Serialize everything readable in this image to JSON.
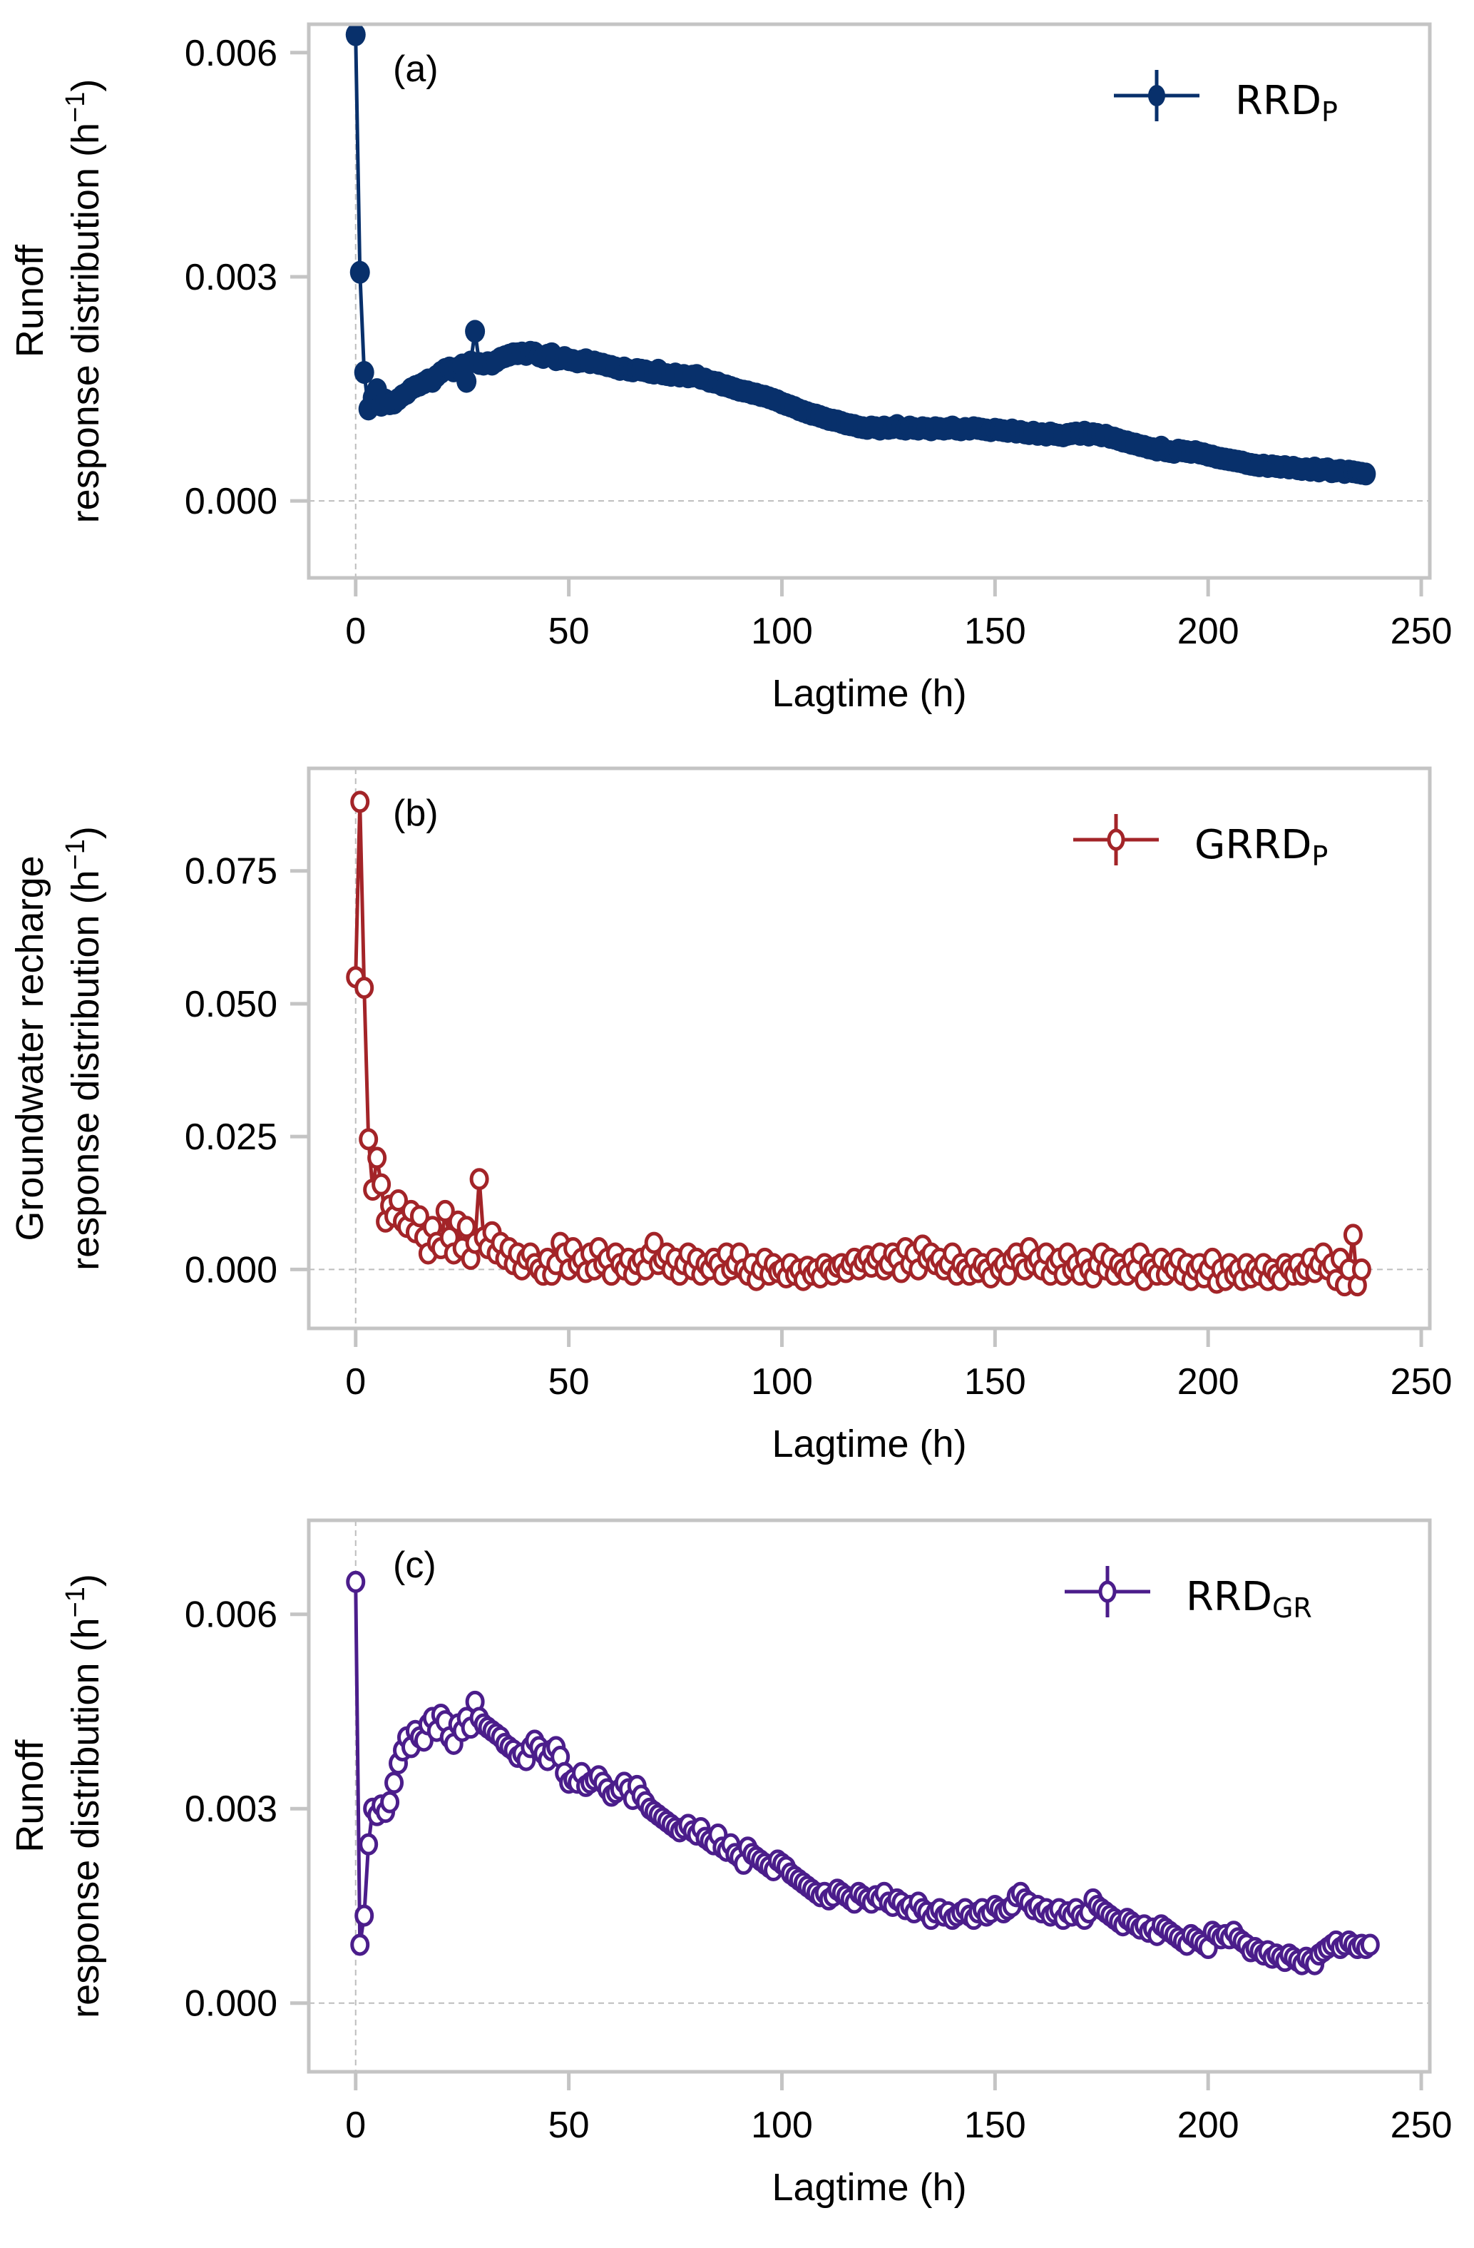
{
  "figure": {
    "panels_count": 3
  },
  "chart_data": [
    {
      "type": "line",
      "panel_tag": "(a)",
      "title": "",
      "xlabel": "Lagtime (h)",
      "ylabel_line1": "Runoff",
      "ylabel_line2": "response distribution (h",
      "ylabel_sup": "−1",
      "ylabel_close": ")",
      "xlim": [
        -11,
        252
      ],
      "ylim": [
        -0.00103,
        0.00638
      ],
      "xticks": [
        0,
        50,
        100,
        150,
        200,
        250
      ],
      "xtick_labels": [
        "0",
        "50",
        "100",
        "150",
        "200",
        "250"
      ],
      "yticks": [
        0.0,
        0.003,
        0.006
      ],
      "ytick_labels": [
        "0.000",
        "0.003",
        "0.006"
      ],
      "grid": false,
      "reference_lines": {
        "x0": true,
        "y0": true
      },
      "legend": {
        "label_main": "RRD",
        "label_sub": "P",
        "placement": "top-right"
      },
      "series": [
        {
          "name": "RRD_P",
          "color": "#08306b",
          "marker": "filled-circle",
          "x_start": 0,
          "x_step": 1,
          "values": [
            0.00624,
            0.00306,
            0.00172,
            0.00123,
            0.00138,
            0.00149,
            0.00128,
            0.00135,
            0.0013,
            0.00131,
            0.00136,
            0.00141,
            0.00144,
            0.0015,
            0.00153,
            0.00155,
            0.00158,
            0.00162,
            0.0016,
            0.00167,
            0.00172,
            0.00176,
            0.00178,
            0.00174,
            0.00178,
            0.00182,
            0.0016,
            0.00186,
            0.00227,
            0.00184,
            0.00183,
            0.00185,
            0.00183,
            0.00187,
            0.00191,
            0.00193,
            0.00195,
            0.00197,
            0.00197,
            0.00198,
            0.00196,
            0.00199,
            0.00198,
            0.00194,
            0.00192,
            0.00195,
            0.00197,
            0.00189,
            0.0019,
            0.00192,
            0.00189,
            0.00188,
            0.00186,
            0.00187,
            0.00189,
            0.00185,
            0.00186,
            0.00184,
            0.00183,
            0.00181,
            0.0018,
            0.00178,
            0.00176,
            0.00178,
            0.00175,
            0.00174,
            0.00176,
            0.00175,
            0.00174,
            0.00172,
            0.00171,
            0.00175,
            0.0017,
            0.00169,
            0.00168,
            0.0017,
            0.00167,
            0.00168,
            0.00166,
            0.00167,
            0.00168,
            0.00164,
            0.00163,
            0.0016,
            0.00159,
            0.00158,
            0.00155,
            0.00154,
            0.00152,
            0.0015,
            0.00148,
            0.00147,
            0.00146,
            0.00144,
            0.00143,
            0.00141,
            0.0014,
            0.00138,
            0.00136,
            0.00134,
            0.00131,
            0.00129,
            0.00127,
            0.00125,
            0.00122,
            0.0012,
            0.00118,
            0.00116,
            0.00115,
            0.00113,
            0.00111,
            0.00109,
            0.00108,
            0.00107,
            0.00105,
            0.00103,
            0.00102,
            0.00101,
            0.00099,
            0.00098,
            0.00097,
            0.00099,
            0.00098,
            0.00096,
            0.00099,
            0.00097,
            0.00098,
            0.00101,
            0.00097,
            0.00096,
            0.00099,
            0.00097,
            0.00096,
            0.00098,
            0.00097,
            0.00095,
            0.00098,
            0.00097,
            0.00096,
            0.00097,
            0.00099,
            0.00096,
            0.00095,
            0.00097,
            0.00096,
            0.00098,
            0.00097,
            0.00096,
            0.00095,
            0.00094,
            0.00096,
            0.00095,
            0.00094,
            0.00093,
            0.00095,
            0.00092,
            0.00093,
            0.00091,
            0.0009,
            0.00092,
            0.00089,
            0.0009,
            0.00088,
            0.00091,
            0.00089,
            0.00088,
            0.00087,
            0.00089,
            0.0009,
            0.00091,
            0.00089,
            0.00092,
            0.00088,
            0.0009,
            0.00089,
            0.00087,
            0.00088,
            0.00085,
            0.00084,
            0.00082,
            0.0008,
            0.00079,
            0.00077,
            0.00076,
            0.00074,
            0.00073,
            0.00071,
            0.0007,
            0.00068,
            0.00072,
            0.00067,
            0.00066,
            0.00065,
            0.00068,
            0.00067,
            0.00066,
            0.00065,
            0.00066,
            0.00064,
            0.00063,
            0.00061,
            0.0006,
            0.00058,
            0.00057,
            0.00056,
            0.00055,
            0.00054,
            0.00053,
            0.00052,
            0.0005,
            0.00049,
            0.00048,
            0.00047,
            0.00048,
            0.00046,
            0.00047,
            0.00046,
            0.00045,
            0.00046,
            0.00044,
            0.00045,
            0.00043,
            0.00042,
            0.00043,
            0.00041,
            0.00044,
            0.0004,
            0.00042,
            0.00043,
            0.00039,
            0.0004,
            0.00041,
            0.00038,
            0.0004,
            0.00039,
            0.00038,
            0.00037,
            0.00036
          ]
        }
      ]
    },
    {
      "type": "line",
      "panel_tag": "(b)",
      "title": "",
      "xlabel": "Lagtime (h)",
      "ylabel_line1": "Groundwater recharge",
      "ylabel_line2": "response distribution (h",
      "ylabel_sup": "−1",
      "ylabel_close": ")",
      "xlim": [
        -11,
        252
      ],
      "ylim": [
        -0.0111,
        0.0943
      ],
      "xticks": [
        0,
        50,
        100,
        150,
        200,
        250
      ],
      "xtick_labels": [
        "0",
        "50",
        "100",
        "150",
        "200",
        "250"
      ],
      "yticks": [
        0.0,
        0.025,
        0.05,
        0.075
      ],
      "ytick_labels": [
        "0.000",
        "0.025",
        "0.050",
        "0.075"
      ],
      "grid": false,
      "reference_lines": {
        "x0": true,
        "y0": true
      },
      "legend": {
        "label_main": "GRRD",
        "label_sub": "P",
        "placement": "top-right"
      },
      "series": [
        {
          "name": "GRRD_P",
          "color": "#a32428",
          "marker": "open-circle",
          "x_start": 0,
          "x_step": 1,
          "values": [
            0.055,
            0.088,
            0.053,
            0.0245,
            0.015,
            0.021,
            0.016,
            0.009,
            0.012,
            0.01,
            0.013,
            0.009,
            0.008,
            0.011,
            0.007,
            0.01,
            0.006,
            0.003,
            0.008,
            0.005,
            0.004,
            0.011,
            0.006,
            0.003,
            0.009,
            0.004,
            0.008,
            0.002,
            0.005,
            0.017,
            0.006,
            0.004,
            0.007,
            0.003,
            0.005,
            0.002,
            0.004,
            0.001,
            0.003,
            0.0,
            0.002,
            0.003,
            0.001,
            0.0,
            -0.001,
            0.002,
            -0.001,
            0.001,
            0.005,
            0.003,
            0.0,
            0.004,
            0.001,
            0.002,
            -0.0005,
            0.003,
            0.0,
            0.004,
            0.001,
            0.002,
            -0.001,
            0.003,
            0.001,
            0.0,
            0.002,
            -0.001,
            0.001,
            0.002,
            0.0,
            0.003,
            0.005,
            0.001,
            0.002,
            0.003,
            0.0,
            0.002,
            -0.001,
            0.001,
            0.003,
            0.0,
            0.002,
            -0.001,
            0.001,
            0.0,
            0.002,
            0.001,
            -0.001,
            0.003,
            0.0,
            0.001,
            0.003,
            0.0,
            -0.001,
            0.001,
            -0.002,
            0.0,
            0.002,
            -0.001,
            0.001,
            -0.0005,
            0.0,
            -0.0015,
            0.001,
            -0.001,
            0.0,
            -0.002,
            0.0005,
            -0.001,
            0.0,
            -0.0015,
            0.001,
            0.0,
            -0.001,
            0.0005,
            0.001,
            -0.0005,
            0.001,
            0.002,
            0.0,
            0.0015,
            0.0025,
            0.0005,
            0.002,
            0.003,
            0.0,
            0.001,
            0.003,
            0.002,
            -0.0005,
            0.004,
            0.001,
            0.003,
            0.0,
            0.0045,
            0.002,
            0.003,
            0.001,
            0.002,
            0.0,
            0.001,
            0.003,
            -0.001,
            0.001,
            0.0,
            -0.001,
            0.002,
            -0.0005,
            0.001,
            0.0,
            -0.0015,
            0.002,
            0.0,
            0.001,
            -0.001,
            0.002,
            0.003,
            0.001,
            0.0,
            0.004,
            0.001,
            0.002,
            0.0,
            0.003,
            -0.001,
            0.001,
            0.002,
            -0.001,
            0.003,
            0.0,
            0.001,
            -0.001,
            0.002,
            0.0,
            -0.0015,
            0.001,
            0.003,
            0.0,
            0.002,
            -0.001,
            0.001,
            0.0,
            -0.001,
            0.002,
            0.0,
            0.003,
            -0.002,
            0.001,
            0.0,
            -0.001,
            0.002,
            -0.001,
            0.001,
            0.0,
            0.002,
            -0.001,
            0.001,
            -0.002,
            0.0,
            0.001,
            -0.0015,
            0.0,
            0.002,
            -0.0025,
            0.0,
            -0.002,
            0.001,
            -0.001,
            0.0,
            -0.002,
            0.001,
            -0.0015,
            0.0,
            -0.001,
            0.001,
            -0.002,
            0.0,
            -0.001,
            -0.002,
            0.001,
            0.0,
            -0.001,
            0.001,
            -0.001,
            0.0,
            0.002,
            -0.0005,
            0.001,
            0.003,
            0.0,
            0.001,
            -0.002,
            0.002,
            -0.003,
            0.0,
            0.0065,
            -0.003,
            0.0
          ]
        }
      ]
    },
    {
      "type": "line",
      "panel_tag": "(c)",
      "title": "",
      "xlabel": "Lagtime (h)",
      "ylabel_line1": "Runoff",
      "ylabel_line2": "response distribution (h",
      "ylabel_sup": "−1",
      "ylabel_close": ")",
      "xlim": [
        -11,
        252
      ],
      "ylim": [
        -0.00106,
        0.00745
      ],
      "xticks": [
        0,
        50,
        100,
        150,
        200,
        250
      ],
      "xtick_labels": [
        "0",
        "50",
        "100",
        "150",
        "200",
        "250"
      ],
      "yticks": [
        0.0,
        0.003,
        0.006
      ],
      "ytick_labels": [
        "0.000",
        "0.003",
        "0.006"
      ],
      "grid": false,
      "reference_lines": {
        "x0": true,
        "y0": true
      },
      "legend": {
        "label_main": "RRD",
        "label_sub": "GR",
        "placement": "top-right"
      },
      "series": [
        {
          "name": "RRD_GR",
          "color": "#4b1d8b",
          "marker": "open-circle",
          "x_start": 0,
          "x_step": 1,
          "values": [
            0.0065,
            0.0009,
            0.00135,
            0.00245,
            0.003,
            0.0029,
            0.00305,
            0.00295,
            0.0031,
            0.0034,
            0.0037,
            0.0039,
            0.0041,
            0.00395,
            0.0042,
            0.0041,
            0.00405,
            0.0043,
            0.0044,
            0.0042,
            0.00445,
            0.00435,
            0.0041,
            0.004,
            0.0043,
            0.0042,
            0.0044,
            0.00425,
            0.00465,
            0.0044,
            0.0043,
            0.00425,
            0.0042,
            0.00415,
            0.0041,
            0.004,
            0.00395,
            0.0039,
            0.0038,
            0.00385,
            0.00375,
            0.00395,
            0.00405,
            0.00395,
            0.00385,
            0.00375,
            0.0039,
            0.00395,
            0.0038,
            0.00355,
            0.0034,
            0.00345,
            0.0034,
            0.00355,
            0.00335,
            0.0034,
            0.00345,
            0.0035,
            0.0034,
            0.0033,
            0.0032,
            0.00325,
            0.0033,
            0.0034,
            0.0033,
            0.00315,
            0.00335,
            0.0032,
            0.0031,
            0.003,
            0.00295,
            0.0029,
            0.00285,
            0.0028,
            0.00275,
            0.0027,
            0.00265,
            0.0027,
            0.00275,
            0.00265,
            0.0026,
            0.0027,
            0.00255,
            0.0025,
            0.00245,
            0.0026,
            0.0024,
            0.00235,
            0.00245,
            0.0023,
            0.00225,
            0.00215,
            0.0024,
            0.0023,
            0.00225,
            0.0022,
            0.00215,
            0.0021,
            0.00205,
            0.0022,
            0.00215,
            0.0021,
            0.002,
            0.00195,
            0.0019,
            0.00185,
            0.0018,
            0.00175,
            0.0017,
            0.00165,
            0.0017,
            0.0016,
            0.00165,
            0.00175,
            0.0017,
            0.00165,
            0.0016,
            0.00155,
            0.0017,
            0.00165,
            0.0016,
            0.00155,
            0.00165,
            0.0016,
            0.0017,
            0.00155,
            0.0015,
            0.0016,
            0.00155,
            0.00145,
            0.0015,
            0.0014,
            0.00155,
            0.00145,
            0.0014,
            0.0013,
            0.0014,
            0.00145,
            0.00135,
            0.0014,
            0.0013,
            0.00135,
            0.0014,
            0.00145,
            0.00135,
            0.0013,
            0.0014,
            0.00145,
            0.00135,
            0.0014,
            0.0015,
            0.00145,
            0.0014,
            0.00145,
            0.0015,
            0.00165,
            0.0017,
            0.0016,
            0.00155,
            0.00145,
            0.0015,
            0.0014,
            0.00145,
            0.00135,
            0.0014,
            0.00145,
            0.0013,
            0.0014,
            0.00135,
            0.00145,
            0.00135,
            0.0013,
            0.0014,
            0.0016,
            0.0015,
            0.00145,
            0.0014,
            0.00135,
            0.0013,
            0.00125,
            0.0012,
            0.0013,
            0.00125,
            0.0012,
            0.00115,
            0.0012,
            0.0011,
            0.00115,
            0.00105,
            0.0012,
            0.00115,
            0.0011,
            0.00105,
            0.001,
            0.00095,
            0.0009,
            0.00105,
            0.001,
            0.00095,
            0.0009,
            0.00085,
            0.0011,
            0.00105,
            0.001,
            0.00105,
            0.001,
            0.0011,
            0.001,
            0.00095,
            0.0009,
            0.0008,
            0.00085,
            0.0008,
            0.00075,
            0.0008,
            0.0007,
            0.00075,
            0.0007,
            0.00065,
            0.00075,
            0.0007,
            0.00065,
            0.0006,
            0.0007,
            0.00065,
            0.0006,
            0.00075,
            0.0008,
            0.00085,
            0.0009,
            0.00095,
            0.00085,
            0.0009,
            0.00095,
            0.0009,
            0.00085,
            0.0009,
            0.00085,
            0.0009
          ]
        }
      ]
    }
  ]
}
